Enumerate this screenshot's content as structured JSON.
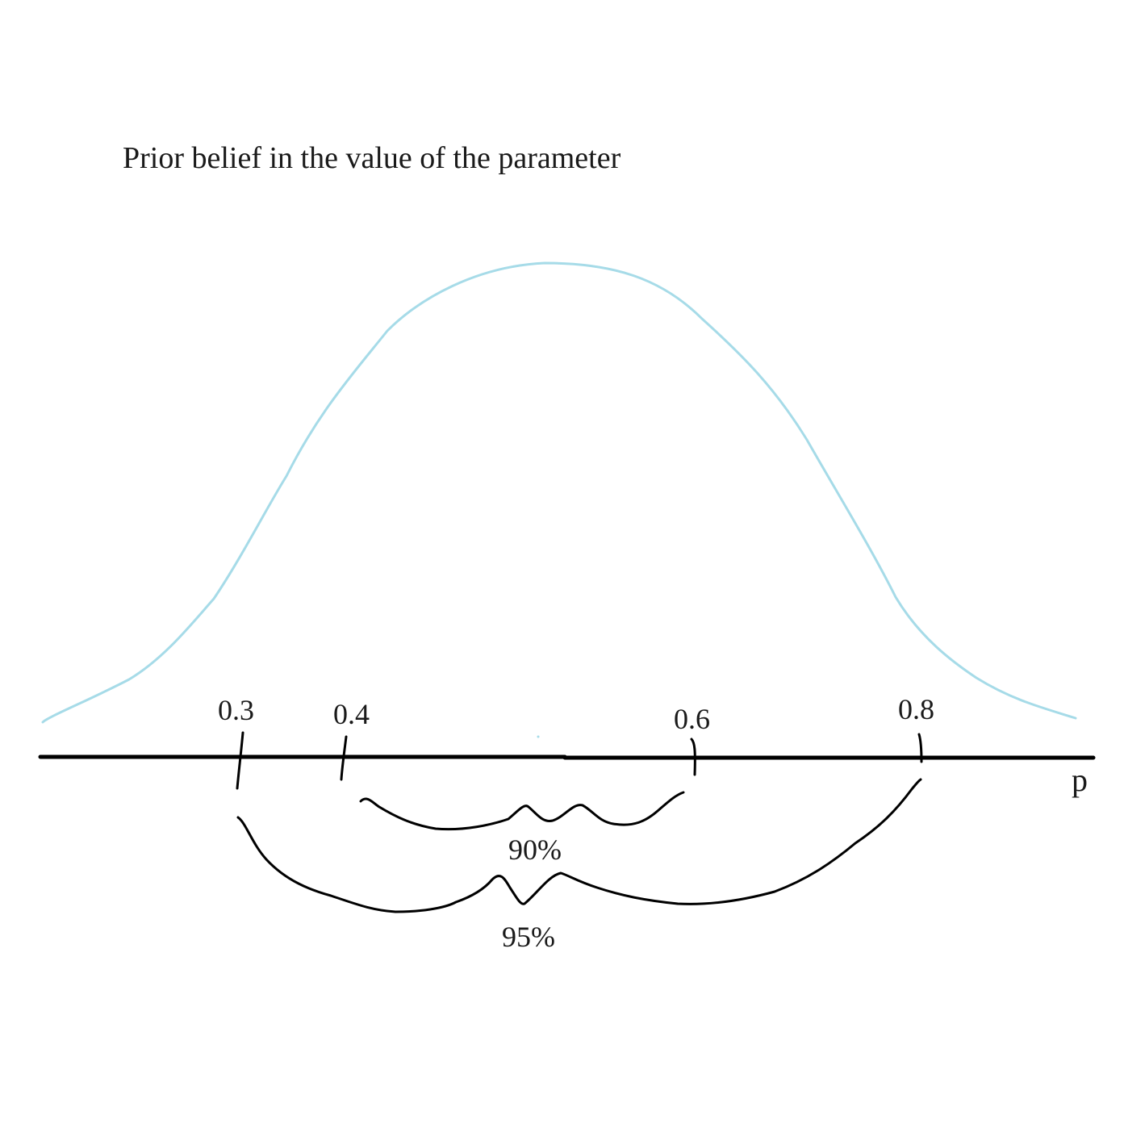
{
  "title": "Prior belief in the value of the parameter",
  "axis_variable": "p",
  "ticks": [
    {
      "label": "0.3"
    },
    {
      "label": "0.4"
    },
    {
      "label": "0.6"
    },
    {
      "label": "0.8"
    }
  ],
  "intervals": [
    {
      "label": "90%",
      "from": "0.4",
      "to": "0.6"
    },
    {
      "label": "95%",
      "from": "0.3",
      "to": "0.8"
    }
  ],
  "colors": {
    "curve": "#a6dbe8",
    "ink": "#000000"
  }
}
